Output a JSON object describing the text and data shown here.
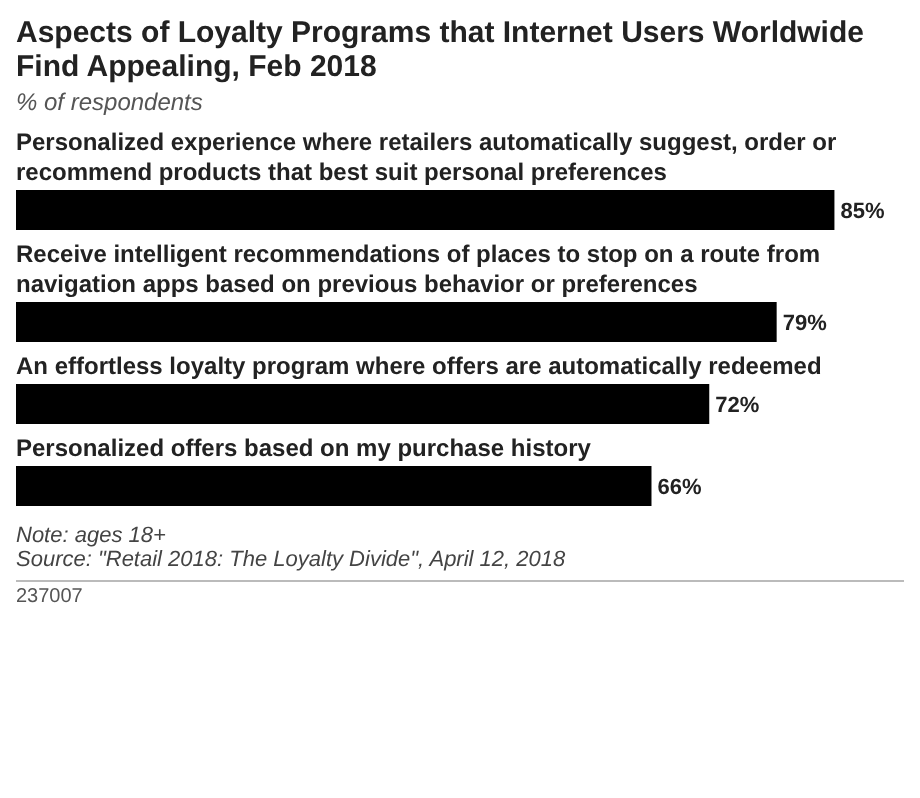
{
  "chart_data": {
    "type": "bar",
    "orientation": "horizontal",
    "title": "Aspects of Loyalty Programs that Internet Users Worldwide Find Appealing, Feb 2018",
    "subtitle": "% of respondents",
    "categories": [
      "Personalized experience where retailers automatically suggest, order or recommend products that best suit personal preferences",
      "Receive intelligent recommendations of places to stop on a route from navigation apps based on previous behavior or preferences",
      "An effortless loyalty program where offers are automatically redeemed",
      "Personalized offers based on my purchase history"
    ],
    "values": [
      85,
      79,
      72,
      66
    ],
    "color": "#000000",
    "value_labels": [
      "85%",
      "79%",
      "72%",
      "66%"
    ],
    "annotations": [
      "Note: ages 18+",
      "Source: \"Retail 2018: The Loyalty Divide\", April 12, 2018",
      "237007"
    ]
  }
}
